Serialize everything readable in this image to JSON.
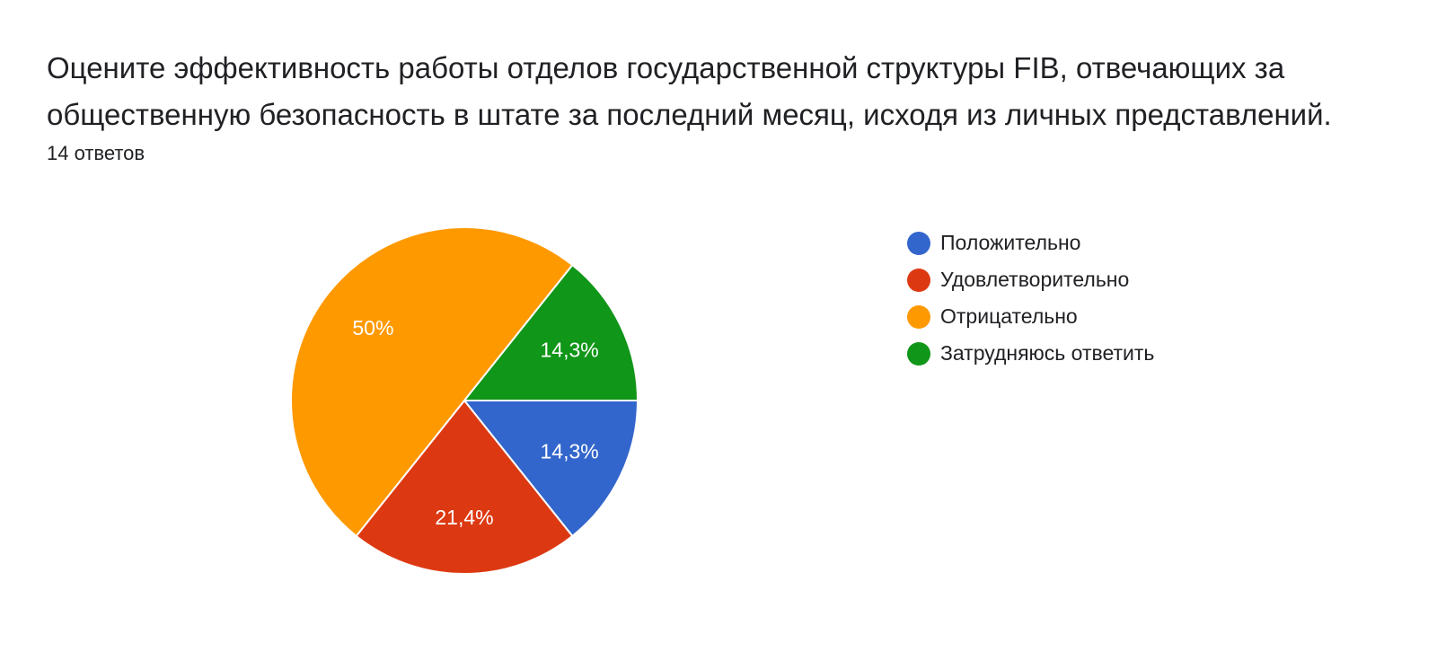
{
  "question": {
    "title": "Оцените эффективность работы отделов государственной структуры FIB, отвечающих за общественную безопасность в штате за последний месяц, исходя из личных представлений.",
    "response_count": "14 ответов"
  },
  "chart_data": {
    "type": "pie",
    "total": 14,
    "slices": [
      {
        "label": "Положительно",
        "value": 2,
        "percent_label": "14,3%",
        "color": "#3366cc"
      },
      {
        "label": "Удовлетворительно",
        "value": 3,
        "percent_label": "21,4%",
        "color": "#dc3912"
      },
      {
        "label": "Отрицательно",
        "value": 7,
        "percent_label": "50%",
        "color": "#ff9900"
      },
      {
        "label": "Затрудняюсь ответить",
        "value": 2,
        "percent_label": "14,3%",
        "color": "#109618"
      }
    ],
    "legend_position": "right"
  }
}
